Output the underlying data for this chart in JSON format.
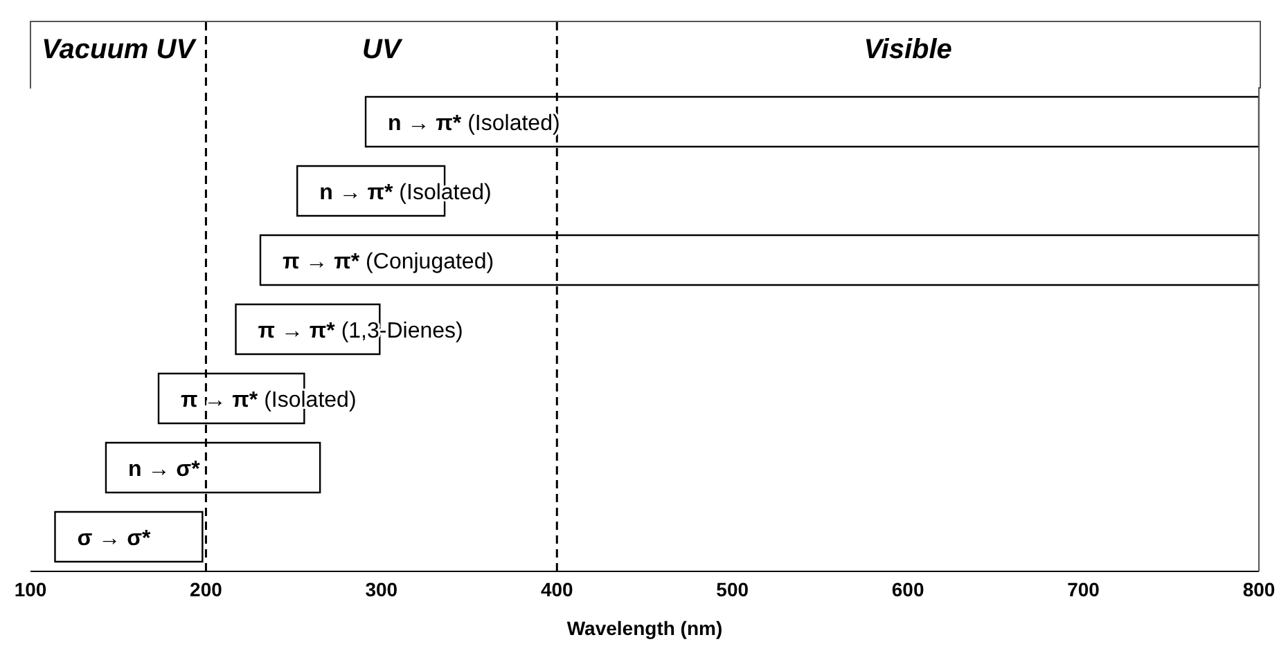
{
  "chart_data": {
    "type": "bar",
    "orientation": "horizontal",
    "xlabel": "Wavelength (nm)",
    "categories": [
      "n → π* (Isolated)",
      "n → π* (Isolated)",
      "π → π* (Conjugated)",
      "π → π* (1,3-Dienes)",
      "π → π* (Isolated)",
      "n → σ*",
      "σ → σ*"
    ],
    "base": [
      291,
      252,
      231,
      217,
      173,
      143,
      114
    ],
    "values": [
      509,
      84,
      569,
      82,
      83,
      122,
      84
    ],
    "color": "#ffffff",
    "xlim": [
      100,
      800
    ],
    "xticks": [
      100,
      200,
      300,
      400,
      500,
      600,
      700,
      800
    ],
    "ref_lines": [
      {
        "axis": "x",
        "value": 200,
        "label": null,
        "line_style": "dashed"
      },
      {
        "axis": "x",
        "value": 400,
        "label": null,
        "line_style": "dashed"
      }
    ],
    "annotations": [
      "Vacuum UV",
      "UV",
      "Visible"
    ]
  }
}
